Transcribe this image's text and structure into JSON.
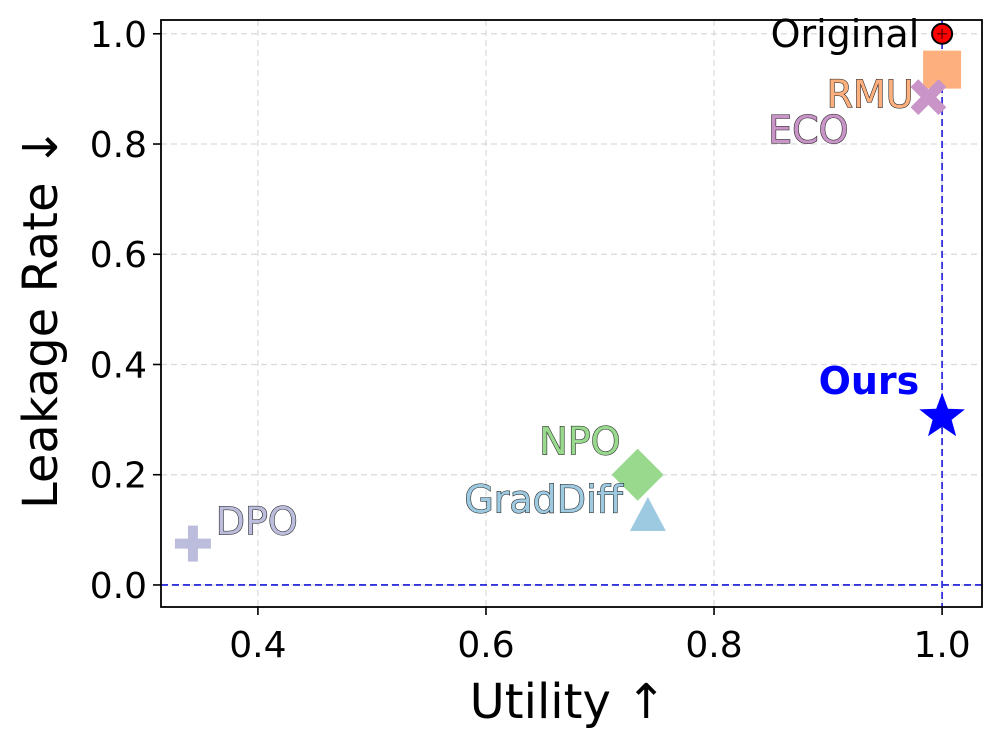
{
  "chart_data": {
    "type": "scatter",
    "xlabel": "Utility ↑",
    "ylabel": "Leakage Rate ↓",
    "xlim": [
      0.315,
      1.035
    ],
    "ylim": [
      -0.04,
      1.025
    ],
    "xticks": [
      {
        "value": 0.4,
        "label": "0.4"
      },
      {
        "value": 0.6,
        "label": "0.6"
      },
      {
        "value": 0.8,
        "label": "0.8"
      },
      {
        "value": 1.0,
        "label": "1.0",
        "highlight": true
      }
    ],
    "yticks": [
      {
        "value": 0.0,
        "label": "0.0",
        "highlight": true
      },
      {
        "value": 0.2,
        "label": "0.2"
      },
      {
        "value": 0.4,
        "label": "0.4"
      },
      {
        "value": 0.6,
        "label": "0.6"
      },
      {
        "value": 0.8,
        "label": "0.8"
      },
      {
        "value": 1.0,
        "label": "1.0"
      }
    ],
    "grid": true,
    "highlight_color": "#0000ff",
    "reference_lines": [
      {
        "orientation": "vertical",
        "value": 1.0,
        "color": "#3333dd"
      },
      {
        "orientation": "horizontal",
        "value": 0.0,
        "color": "#3333dd"
      }
    ],
    "points": [
      {
        "name": "Original",
        "x": 1.0,
        "y": 1.0,
        "marker": "circle",
        "color": "#ff0000",
        "label_color": "#000000",
        "label_outline": false,
        "label_anchor": "end",
        "label_dx": -0.02,
        "label_dy": 0.0
      },
      {
        "name": "RMU",
        "x": 1.0,
        "y": 0.935,
        "marker": "square",
        "color": "#fdb07d",
        "label_color": "#fdb07d",
        "label_outline": true,
        "label_anchor": "end",
        "label_dx": -0.025,
        "label_dy": -0.045
      },
      {
        "name": "ECO",
        "x": 0.988,
        "y": 0.885,
        "marker": "x",
        "color": "#c994c7",
        "label_color": "#c994c7",
        "label_outline": true,
        "label_anchor": "end",
        "label_dx": -0.07,
        "label_dy": -0.06
      },
      {
        "name": "Ours",
        "x": 1.0,
        "y": 0.305,
        "marker": "star",
        "color": "#0000ff",
        "label_color": "#0000ff",
        "label_outline": false,
        "label_bold": true,
        "label_anchor": "end",
        "label_dx": -0.02,
        "label_dy": 0.065
      },
      {
        "name": "NPO",
        "x": 0.733,
        "y": 0.2,
        "marker": "diamond",
        "color": "#98d98e",
        "label_color": "#98d98e",
        "label_outline": true,
        "label_anchor": "end",
        "label_dx": -0.015,
        "label_dy": 0.06
      },
      {
        "name": "GradDiff",
        "x": 0.742,
        "y": 0.125,
        "marker": "triangle",
        "color": "#9ecae1",
        "label_color": "#9ecae1",
        "label_outline": true,
        "label_anchor": "end",
        "label_dx": -0.022,
        "label_dy": 0.03
      },
      {
        "name": "DPO",
        "x": 0.343,
        "y": 0.075,
        "marker": "plus",
        "color": "#bcbddc",
        "label_color": "#bcbddc",
        "label_outline": true,
        "label_anchor": "start",
        "label_dx": 0.02,
        "label_dy": 0.04
      }
    ]
  }
}
